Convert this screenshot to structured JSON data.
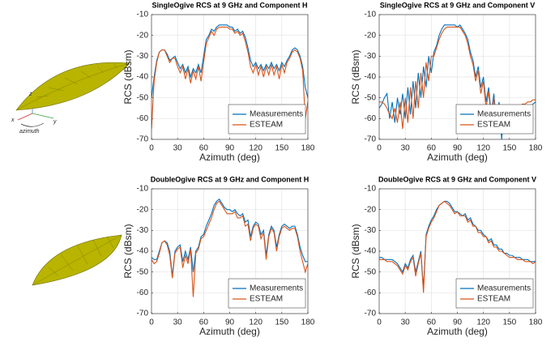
{
  "illustration": {
    "axis_labels": [
      "z",
      "x",
      "y"
    ],
    "caption": "azimuth"
  },
  "chart_data": [
    {
      "type": "line",
      "title": "SingleOgive RCS at 9 GHz and Component H",
      "xlabel": "Azimuth (deg)",
      "ylabel": "RCS (dBsm)",
      "x": [
        0,
        3,
        6,
        9,
        12,
        15,
        18,
        21,
        24,
        27,
        30,
        33,
        36,
        39,
        42,
        45,
        48,
        51,
        54,
        57,
        60,
        63,
        66,
        69,
        72,
        75,
        78,
        81,
        84,
        87,
        90,
        93,
        96,
        99,
        102,
        105,
        108,
        111,
        114,
        117,
        120,
        123,
        126,
        129,
        132,
        135,
        138,
        141,
        144,
        147,
        150,
        153,
        156,
        159,
        162,
        165,
        168,
        171,
        174,
        177,
        180
      ],
      "series": [
        {
          "name": "Measurements",
          "color": "#0072bd",
          "values": [
            -50,
            -40,
            -32,
            -28,
            -27,
            -27,
            -29,
            -32,
            -31,
            -30,
            -33,
            -36,
            -34,
            -38,
            -35,
            -40,
            -36,
            -38,
            -34,
            -38,
            -30,
            -22,
            -20,
            -17,
            -18,
            -16,
            -15,
            -15,
            -15,
            -15,
            -16,
            -16,
            -18,
            -17,
            -19,
            -18,
            -21,
            -26,
            -32,
            -35,
            -33,
            -36,
            -34,
            -37,
            -34,
            -36,
            -33,
            -36,
            -34,
            -37,
            -33,
            -35,
            -32,
            -30,
            -27,
            -26,
            -27,
            -30,
            -35,
            -45,
            -50
          ]
        },
        {
          "name": "ESTEAM",
          "color": "#d95319",
          "values": [
            -65,
            -42,
            -33,
            -28,
            -27,
            -27,
            -30,
            -33,
            -31,
            -31,
            -35,
            -38,
            -35,
            -41,
            -36,
            -43,
            -37,
            -41,
            -35,
            -42,
            -33,
            -24,
            -21,
            -18,
            -20,
            -17,
            -16,
            -16,
            -16,
            -16,
            -17,
            -17,
            -19,
            -18,
            -20,
            -19,
            -23,
            -28,
            -35,
            -38,
            -34,
            -39,
            -35,
            -40,
            -35,
            -39,
            -34,
            -39,
            -35,
            -41,
            -34,
            -38,
            -33,
            -31,
            -28,
            -27,
            -28,
            -31,
            -37,
            -60,
            -52
          ]
        }
      ],
      "xlim": [
        0,
        180
      ],
      "ylim": [
        -70,
        -10
      ],
      "xticks": [
        0,
        30,
        60,
        90,
        120,
        150,
        180
      ],
      "yticks": [
        -70,
        -60,
        -50,
        -40,
        -30,
        -20,
        -10
      ],
      "grid": true,
      "legend": "lower right"
    },
    {
      "type": "line",
      "title": "SingleOgive RCS at 9 GHz and Component V",
      "xlabel": "Azimuth (deg)",
      "ylabel": "RCS (dBsm)",
      "x": [
        0,
        3,
        6,
        9,
        12,
        15,
        18,
        21,
        24,
        27,
        30,
        33,
        36,
        39,
        42,
        45,
        48,
        51,
        54,
        57,
        60,
        63,
        66,
        69,
        72,
        75,
        78,
        81,
        84,
        87,
        90,
        93,
        96,
        99,
        102,
        105,
        108,
        111,
        114,
        117,
        120,
        123,
        126,
        129,
        132,
        135,
        138,
        141,
        144,
        147,
        150,
        153,
        156,
        159,
        162,
        165,
        168,
        171,
        174,
        177,
        180
      ],
      "series": [
        {
          "name": "Measurements",
          "color": "#0072bd",
          "values": [
            -55,
            -53,
            -50,
            -48,
            -60,
            -52,
            -62,
            -50,
            -58,
            -48,
            -60,
            -45,
            -58,
            -42,
            -55,
            -38,
            -50,
            -35,
            -45,
            -30,
            -38,
            -28,
            -25,
            -20,
            -17,
            -15,
            -15,
            -15,
            -15,
            -15,
            -16,
            -15,
            -17,
            -19,
            -22,
            -28,
            -32,
            -40,
            -35,
            -45,
            -40,
            -52,
            -45,
            -58,
            -48,
            -62,
            -52,
            -70,
            -55,
            -66,
            -58,
            -62,
            -60,
            -58,
            -62,
            -58,
            -56,
            -55,
            -54,
            -53,
            -52
          ]
        },
        {
          "name": "ESTEAM",
          "color": "#d95319",
          "values": [
            -52,
            -52,
            -53,
            -55,
            -58,
            -60,
            -55,
            -62,
            -52,
            -65,
            -50,
            -62,
            -45,
            -60,
            -42,
            -55,
            -38,
            -50,
            -33,
            -42,
            -30,
            -30,
            -26,
            -22,
            -19,
            -17,
            -16,
            -16,
            -16,
            -16,
            -16,
            -16,
            -18,
            -20,
            -24,
            -30,
            -34,
            -42,
            -37,
            -48,
            -42,
            -55,
            -47,
            -60,
            -50,
            -65,
            -54,
            -62,
            -57,
            -60,
            -58,
            -57,
            -56,
            -55,
            -54,
            -53,
            -53,
            -52,
            -52,
            -51,
            -51
          ]
        }
      ],
      "xlim": [
        0,
        180
      ],
      "ylim": [
        -70,
        -10
      ],
      "xticks": [
        0,
        30,
        60,
        90,
        120,
        150,
        180
      ],
      "yticks": [
        -70,
        -60,
        -50,
        -40,
        -30,
        -20,
        -10
      ],
      "grid": true,
      "legend": "lower right"
    },
    {
      "type": "line",
      "title": "DoubleOgive RCS at 9 GHz and Component H",
      "xlabel": "Azimuth (deg)",
      "ylabel": "RCS (dBsm)",
      "x": [
        0,
        3,
        6,
        9,
        12,
        15,
        18,
        21,
        24,
        27,
        30,
        33,
        36,
        39,
        42,
        45,
        48,
        51,
        54,
        57,
        60,
        63,
        66,
        69,
        72,
        75,
        78,
        81,
        84,
        87,
        90,
        93,
        96,
        99,
        102,
        105,
        108,
        111,
        114,
        117,
        120,
        123,
        126,
        129,
        132,
        135,
        138,
        141,
        144,
        147,
        150,
        153,
        156,
        159,
        162,
        165,
        168,
        171,
        174,
        177,
        180
      ],
      "series": [
        {
          "name": "Measurements",
          "color": "#0072bd",
          "values": [
            -43,
            -44,
            -44,
            -40,
            -36,
            -35,
            -36,
            -40,
            -52,
            -40,
            -38,
            -37,
            -45,
            -40,
            -44,
            -38,
            -50,
            -40,
            -38,
            -33,
            -32,
            -28,
            -25,
            -22,
            -18,
            -16,
            -15,
            -17,
            -19,
            -20,
            -20,
            -21,
            -20,
            -22,
            -23,
            -22,
            -26,
            -25,
            -33,
            -28,
            -26,
            -27,
            -32,
            -30,
            -42,
            -32,
            -28,
            -30,
            -38,
            -32,
            -28,
            -27,
            -28,
            -29,
            -28,
            -28,
            -32,
            -38,
            -42,
            -45,
            -45
          ]
        },
        {
          "name": "ESTEAM",
          "color": "#d95319",
          "values": [
            -44,
            -46,
            -45,
            -41,
            -36,
            -35,
            -37,
            -42,
            -53,
            -41,
            -39,
            -38,
            -48,
            -42,
            -46,
            -39,
            -62,
            -41,
            -39,
            -34,
            -33,
            -30,
            -27,
            -24,
            -20,
            -17,
            -16,
            -18,
            -20,
            -22,
            -22,
            -22,
            -21,
            -24,
            -24,
            -23,
            -28,
            -27,
            -35,
            -29,
            -27,
            -28,
            -34,
            -31,
            -44,
            -33,
            -29,
            -31,
            -40,
            -33,
            -29,
            -28,
            -29,
            -30,
            -29,
            -29,
            -33,
            -40,
            -45,
            -50,
            -46
          ]
        }
      ],
      "xlim": [
        0,
        180
      ],
      "ylim": [
        -70,
        -10
      ],
      "xticks": [
        0,
        30,
        60,
        90,
        120,
        150,
        180
      ],
      "yticks": [
        -70,
        -60,
        -50,
        -40,
        -30,
        -20,
        -10
      ],
      "grid": true,
      "legend": "lower right"
    },
    {
      "type": "line",
      "title": "DoubleOgive RCS at 9 GHz and Component V",
      "xlabel": "Azimuth (deg)",
      "ylabel": "RCS (dBsm)",
      "x": [
        0,
        3,
        6,
        9,
        12,
        15,
        18,
        21,
        24,
        27,
        30,
        33,
        36,
        39,
        42,
        45,
        48,
        51,
        54,
        57,
        60,
        63,
        66,
        69,
        72,
        75,
        78,
        81,
        84,
        87,
        90,
        93,
        96,
        99,
        102,
        105,
        108,
        111,
        114,
        117,
        120,
        123,
        126,
        129,
        132,
        135,
        138,
        141,
        144,
        147,
        150,
        153,
        156,
        159,
        162,
        165,
        168,
        171,
        174,
        177,
        180
      ],
      "series": [
        {
          "name": "Measurements",
          "color": "#0072bd",
          "values": [
            -43,
            -43,
            -44,
            -44,
            -44,
            -44,
            -45,
            -46,
            -48,
            -50,
            -46,
            -48,
            -44,
            -42,
            -50,
            -45,
            -40,
            -58,
            -32,
            -28,
            -25,
            -23,
            -20,
            -18,
            -17,
            -16,
            -16,
            -17,
            -19,
            -21,
            -21,
            -22,
            -23,
            -22,
            -25,
            -24,
            -27,
            -28,
            -30,
            -30,
            -32,
            -33,
            -35,
            -34,
            -37,
            -37,
            -39,
            -39,
            -41,
            -41,
            -42,
            -42,
            -43,
            -43,
            -43,
            -44,
            -44,
            -44,
            -45,
            -45,
            -45
          ]
        },
        {
          "name": "ESTEAM",
          "color": "#d95319",
          "values": [
            -44,
            -44,
            -44,
            -45,
            -45,
            -45,
            -46,
            -47,
            -49,
            -51,
            -47,
            -49,
            -45,
            -43,
            -52,
            -46,
            -41,
            -60,
            -33,
            -29,
            -26,
            -24,
            -21,
            -18,
            -17,
            -16,
            -17,
            -18,
            -20,
            -22,
            -21,
            -23,
            -23,
            -23,
            -26,
            -25,
            -28,
            -28,
            -31,
            -31,
            -33,
            -33,
            -36,
            -35,
            -38,
            -38,
            -40,
            -40,
            -41,
            -42,
            -43,
            -43,
            -43,
            -44,
            -44,
            -44,
            -45,
            -45,
            -45,
            -46,
            -45
          ]
        }
      ],
      "xlim": [
        0,
        180
      ],
      "ylim": [
        -70,
        -10
      ],
      "xticks": [
        0,
        30,
        60,
        90,
        120,
        150,
        180
      ],
      "yticks": [
        -70,
        -60,
        -50,
        -40,
        -30,
        -20,
        -10
      ],
      "grid": true,
      "legend": "lower right"
    }
  ]
}
